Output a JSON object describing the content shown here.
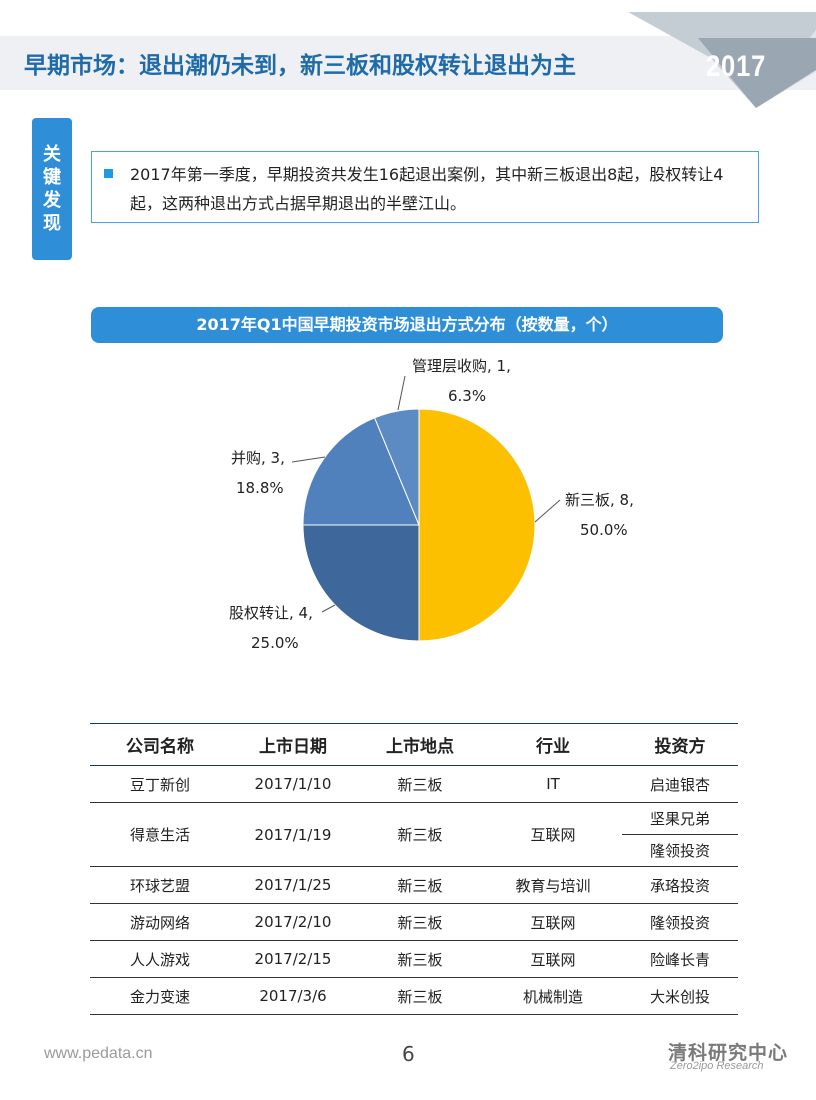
{
  "header": {
    "title": "早期市场：退出潮仍未到，新三板和股权转让退出为主",
    "year": "2017"
  },
  "key_findings": {
    "label": "关键发现",
    "text": "2017年第一季度，早期投资共发生16起退出案例，其中新三板退出8起，股权转让4起，这两种退出方式占据早期退出的半壁江山。"
  },
  "chart_data": {
    "type": "pie",
    "title": "2017年Q1中国早期投资市场退出方式分布（按数量，个）",
    "slices": [
      {
        "name": "新三板",
        "value": 8,
        "percent": "50.0%",
        "color": "#fcc000"
      },
      {
        "name": "股权转让",
        "value": 4,
        "percent": "25.0%",
        "color": "#3e679c"
      },
      {
        "name": "并购",
        "value": 3,
        "percent": "18.8%",
        "color": "#5081bc"
      },
      {
        "name": "管理层收购",
        "value": 1,
        "percent": "6.3%",
        "color": "#5c8bc4"
      }
    ],
    "legend": "none"
  },
  "table": {
    "headers": [
      "公司名称",
      "上市日期",
      "上市地点",
      "行业",
      "投资方"
    ],
    "rows": [
      {
        "company": "豆丁新创",
        "date": "2017/1/10",
        "place": "新三板",
        "industry": "IT",
        "investors": [
          "启迪银杏"
        ]
      },
      {
        "company": "得意生活",
        "date": "2017/1/19",
        "place": "新三板",
        "industry": "互联网",
        "investors": [
          "坚果兄弟",
          "隆领投资"
        ]
      },
      {
        "company": "环球艺盟",
        "date": "2017/1/25",
        "place": "新三板",
        "industry": "教育与培训",
        "investors": [
          "承珞投资"
        ]
      },
      {
        "company": "游动网络",
        "date": "2017/2/10",
        "place": "新三板",
        "industry": "互联网",
        "investors": [
          "隆领投资"
        ]
      },
      {
        "company": "人人游戏",
        "date": "2017/2/15",
        "place": "新三板",
        "industry": "互联网",
        "investors": [
          "险峰长青"
        ]
      },
      {
        "company": "金力变速",
        "date": "2017/3/6",
        "place": "新三板",
        "industry": "机械制造",
        "investors": [
          "大米创投"
        ]
      }
    ]
  },
  "footer": {
    "url": "www.pedata.cn",
    "page_number": "6",
    "brand_cn": "清科研究中心",
    "brand_en": "Zero2ipo Research"
  }
}
